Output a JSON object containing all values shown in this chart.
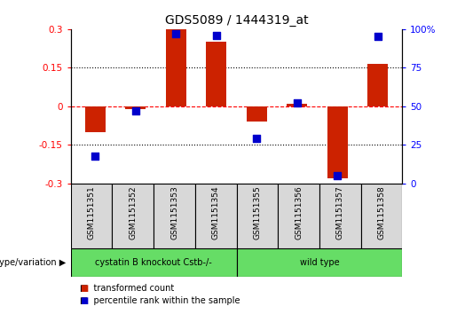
{
  "title": "GDS5089 / 1444319_at",
  "samples": [
    "GSM1151351",
    "GSM1151352",
    "GSM1151353",
    "GSM1151354",
    "GSM1151355",
    "GSM1151356",
    "GSM1151357",
    "GSM1151358"
  ],
  "red_values": [
    -0.1,
    -0.01,
    0.3,
    0.25,
    -0.06,
    0.01,
    -0.28,
    0.165
  ],
  "blue_values": [
    18,
    47,
    97,
    96,
    29,
    52,
    5,
    95
  ],
  "group1_samples": 4,
  "group1_label": "cystatin B knockout Cstb-/-",
  "group2_label": "wild type",
  "green_color": "#66dd66",
  "bar_color": "#cc2200",
  "dot_color": "#0000cc",
  "ylim_left": [
    -0.3,
    0.3
  ],
  "ylim_right": [
    0,
    100
  ],
  "yticks_left": [
    -0.3,
    -0.15,
    0,
    0.15,
    0.3
  ],
  "yticks_right": [
    0,
    25,
    50,
    75,
    100
  ],
  "ytick_labels_left": [
    "-0.3",
    "-0.15",
    "0",
    "0.15",
    "0.3"
  ],
  "ytick_labels_right": [
    "0",
    "25",
    "50",
    "75",
    "100%"
  ],
  "legend_red": "transformed count",
  "legend_blue": "percentile rank within the sample",
  "genotype_label": "genotype/variation",
  "cell_bg": "#d8d8d8",
  "bar_width": 0.5,
  "dot_size": 28
}
